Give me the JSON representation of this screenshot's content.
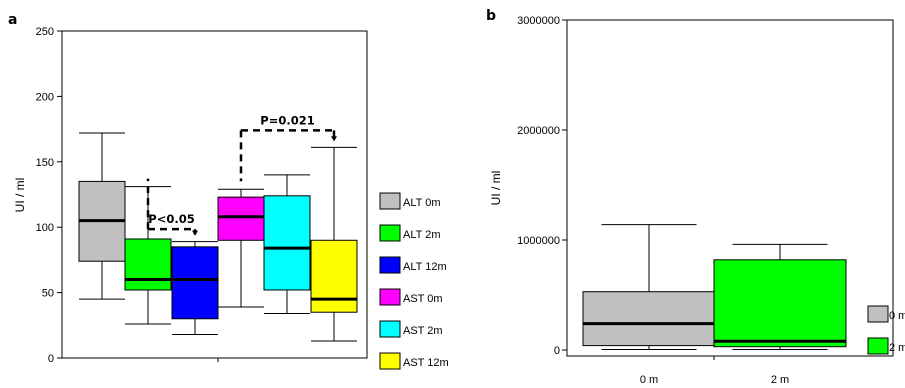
{
  "chart_data": [
    {
      "panel": "a",
      "type": "box",
      "ylabel": "UI / ml",
      "ylim": [
        0,
        250
      ],
      "yticks": [
        0,
        50,
        100,
        150,
        200,
        250
      ],
      "series": [
        {
          "name": "ALT 0m",
          "color": "#c0c0c0",
          "whisker_low": 45,
          "q1": 74,
          "median": 105,
          "q3": 135,
          "whisker_high": 172
        },
        {
          "name": "ALT 2m",
          "color": "#00ff00",
          "whisker_low": 26,
          "q1": 52,
          "median": 60,
          "q3": 91,
          "whisker_high": 131
        },
        {
          "name": "ALT 12m",
          "color": "#0000ff",
          "whisker_low": 18,
          "q1": 30,
          "median": 60,
          "q3": 85,
          "whisker_high": 89
        },
        {
          "name": "AST 0m",
          "color": "#ff00ff",
          "whisker_low": 39,
          "q1": 90,
          "median": 108,
          "q3": 123,
          "whisker_high": 129
        },
        {
          "name": "AST 2m",
          "color": "#00ffff",
          "whisker_low": 34,
          "q1": 52,
          "median": 84,
          "q3": 124,
          "whisker_high": 140
        },
        {
          "name": "AST 12m",
          "color": "#ffff00",
          "whisker_low": 13,
          "q1": 35,
          "median": 45,
          "q3": 90,
          "whisker_high": 161
        }
      ],
      "annotations": [
        {
          "text": "P<0.05",
          "from_series": 1,
          "to_series": 2
        },
        {
          "text": "P=0.021",
          "from_series": 3,
          "to_series": 5
        }
      ]
    },
    {
      "panel": "b",
      "type": "box",
      "ylabel": "UI / ml",
      "ylim": [
        0,
        3000000
      ],
      "yticks": [
        0,
        1000000,
        2000000,
        3000000
      ],
      "categories": [
        "0 m",
        "2 m"
      ],
      "series": [
        {
          "name": "0 m",
          "color": "#c0c0c0",
          "whisker_low": 5000,
          "q1": 40000,
          "median": 240000,
          "q3": 530000,
          "whisker_high": 1140000
        },
        {
          "name": "2 m",
          "color": "#00ff00",
          "whisker_low": 5000,
          "q1": 30000,
          "median": 80000,
          "q3": 820000,
          "whisker_high": 960000
        }
      ]
    }
  ]
}
